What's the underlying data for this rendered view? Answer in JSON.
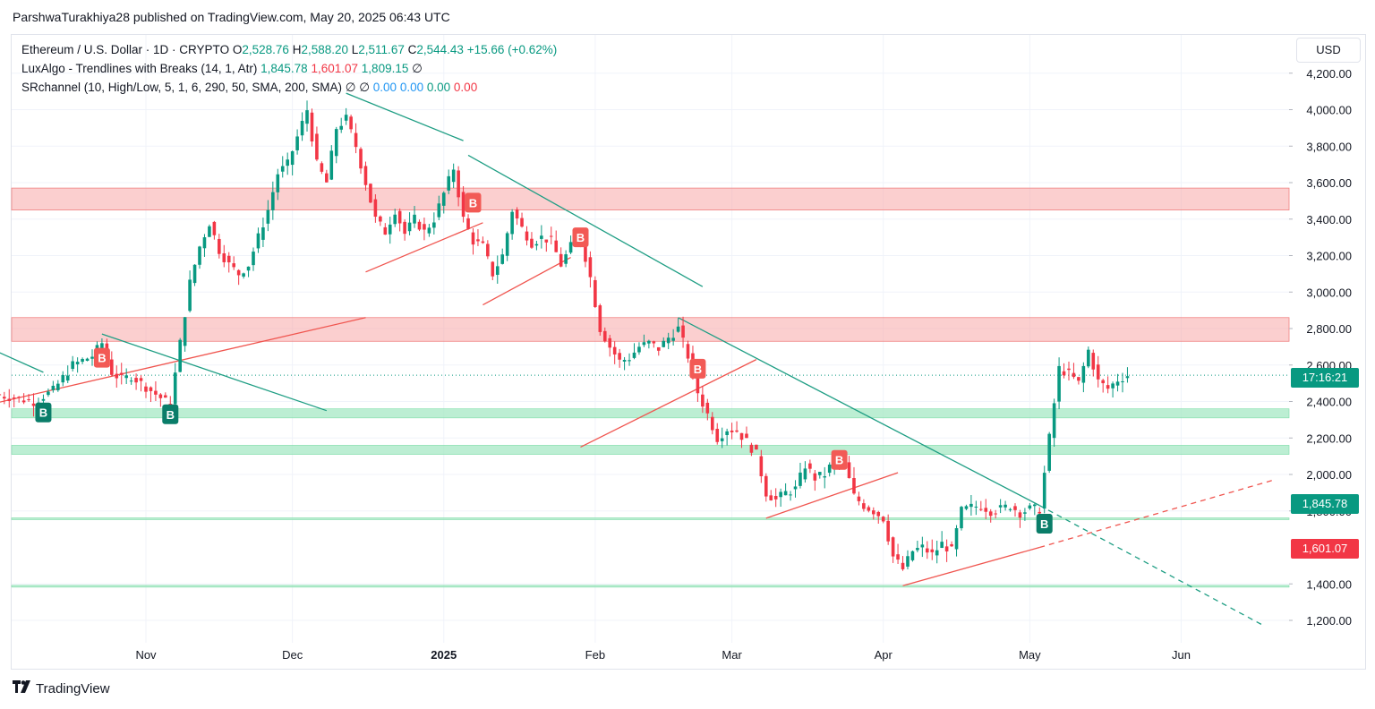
{
  "header": {
    "publisher_line": "ParshwaTurakhiya28 published on TradingView.com, May 20, 2025 06:43 UTC"
  },
  "legend": {
    "symbol": "Ethereum / U.S. Dollar · 1D · CRYPTO",
    "o_label": "O",
    "o_value": "2,528.76",
    "h_label": "H",
    "h_value": "2,588.20",
    "l_label": "L",
    "l_value": "2,511.67",
    "c_label": "C",
    "c_value": "2,544.43",
    "change": "+15.66 (+0.62%)",
    "ind1_name": "LuxAlgo - Trendlines with Breaks (14, 1, Atr)",
    "ind1_v1": "1,845.78",
    "ind1_v2": "1,601.07",
    "ind1_v3": "1,809.15",
    "ind1_v4": "∅",
    "ind2_name": "SRchannel (10, High/Low, 5, 1, 6, 290, 50, SMA, 200, SMA)",
    "ind2_v1": "∅",
    "ind2_v2": "∅",
    "ind2_v3": "0.00",
    "ind2_v4": "0.00",
    "ind2_v5": "0.00",
    "ind2_v6": "0.00"
  },
  "currency": "USD",
  "price_tags": {
    "countdown": "17:16:21",
    "upper_trendline": "1,845.78",
    "lower_trendline": "1,601.07"
  },
  "colors": {
    "up": "#089981",
    "down": "#f23645",
    "resistance_zone": "#f7a8a8",
    "support_zone": "#a5e8c4",
    "trend_down_line": "#1f9e84",
    "trend_up_line": "#f0554f"
  },
  "footer": {
    "logo_text": "TradingView"
  },
  "chart_data": {
    "type": "candlestick",
    "ylim": [
      1100,
      4300
    ],
    "y_ticks": [
      "4,200.00",
      "4,000.00",
      "3,800.00",
      "3,600.00",
      "3,400.00",
      "3,200.00",
      "3,000.00",
      "2,800.00",
      "2,600.00",
      "2,400.00",
      "2,200.00",
      "2,000.00",
      "1,800.00",
      "1,400.00",
      "1,200.00"
    ],
    "y_tick_values": [
      4200,
      4000,
      3800,
      3600,
      3400,
      3200,
      3000,
      2800,
      2600,
      2400,
      2200,
      2000,
      1800,
      1400,
      1200
    ],
    "x_ticks": [
      {
        "label": "Nov",
        "day": 39,
        "bold": false
      },
      {
        "label": "Dec",
        "day": 69,
        "bold": false
      },
      {
        "label": "2025",
        "day": 100,
        "bold": true
      },
      {
        "label": "Feb",
        "day": 131,
        "bold": false
      },
      {
        "label": "Mar",
        "day": 159,
        "bold": false
      },
      {
        "label": "Apr",
        "day": 190,
        "bold": false
      },
      {
        "label": "May",
        "day": 220,
        "bold": false
      },
      {
        "label": "Jun",
        "day": 251,
        "bold": false
      }
    ],
    "days_shown": [
      8,
      274
    ],
    "close_series": [
      [
        8,
        2440
      ],
      [
        12,
        2420
      ],
      [
        16,
        2400
      ],
      [
        20,
        2460
      ],
      [
        24,
        2600
      ],
      [
        28,
        2650
      ],
      [
        30,
        2720
      ],
      [
        32,
        2560
      ],
      [
        34,
        2520
      ],
      [
        36,
        2540
      ],
      [
        38,
        2500
      ],
      [
        42,
        2420
      ],
      [
        44,
        2380
      ],
      [
        46,
        2720
      ],
      [
        48,
        3050
      ],
      [
        50,
        3250
      ],
      [
        52,
        3380
      ],
      [
        54,
        3230
      ],
      [
        56,
        3150
      ],
      [
        58,
        3100
      ],
      [
        60,
        3150
      ],
      [
        62,
        3300
      ],
      [
        64,
        3450
      ],
      [
        66,
        3650
      ],
      [
        68,
        3700
      ],
      [
        70,
        3850
      ],
      [
        72,
        4000
      ],
      [
        74,
        3700
      ],
      [
        76,
        3600
      ],
      [
        78,
        3900
      ],
      [
        80,
        3950
      ],
      [
        82,
        3800
      ],
      [
        84,
        3600
      ],
      [
        86,
        3400
      ],
      [
        88,
        3330
      ],
      [
        90,
        3450
      ],
      [
        92,
        3320
      ],
      [
        94,
        3400
      ],
      [
        96,
        3330
      ],
      [
        98,
        3400
      ],
      [
        100,
        3540
      ],
      [
        102,
        3680
      ],
      [
        104,
        3400
      ],
      [
        106,
        3280
      ],
      [
        108,
        3250
      ],
      [
        110,
        3100
      ],
      [
        112,
        3200
      ],
      [
        114,
        3450
      ],
      [
        116,
        3350
      ],
      [
        118,
        3270
      ],
      [
        120,
        3300
      ],
      [
        122,
        3280
      ],
      [
        124,
        3150
      ],
      [
        126,
        3250
      ],
      [
        128,
        3300
      ],
      [
        130,
        3080
      ],
      [
        132,
        2800
      ],
      [
        134,
        2700
      ],
      [
        136,
        2620
      ],
      [
        138,
        2640
      ],
      [
        140,
        2700
      ],
      [
        142,
        2720
      ],
      [
        144,
        2690
      ],
      [
        146,
        2750
      ],
      [
        148,
        2800
      ],
      [
        150,
        2650
      ],
      [
        152,
        2450
      ],
      [
        154,
        2330
      ],
      [
        156,
        2200
      ],
      [
        158,
        2250
      ],
      [
        160,
        2240
      ],
      [
        162,
        2180
      ],
      [
        164,
        2110
      ],
      [
        166,
        1900
      ],
      [
        168,
        1860
      ],
      [
        170,
        1900
      ],
      [
        172,
        1920
      ],
      [
        174,
        2050
      ],
      [
        176,
        1980
      ],
      [
        178,
        2000
      ],
      [
        180,
        2080
      ],
      [
        182,
        2060
      ],
      [
        184,
        1880
      ],
      [
        186,
        1830
      ],
      [
        188,
        1800
      ],
      [
        190,
        1760
      ],
      [
        192,
        1550
      ],
      [
        194,
        1480
      ],
      [
        196,
        1580
      ],
      [
        198,
        1600
      ],
      [
        200,
        1560
      ],
      [
        202,
        1620
      ],
      [
        204,
        1580
      ],
      [
        206,
        1800
      ],
      [
        208,
        1820
      ],
      [
        210,
        1830
      ],
      [
        212,
        1800
      ],
      [
        214,
        1810
      ],
      [
        216,
        1830
      ],
      [
        218,
        1790
      ],
      [
        220,
        1810
      ],
      [
        222,
        1810
      ],
      [
        224,
        2200
      ],
      [
        226,
        2580
      ],
      [
        228,
        2550
      ],
      [
        230,
        2500
      ],
      [
        232,
        2680
      ],
      [
        234,
        2510
      ],
      [
        236,
        2470
      ],
      [
        238,
        2520
      ],
      [
        240,
        2544
      ]
    ],
    "resistance_zones": [
      {
        "low": 3450,
        "high": 3570
      },
      {
        "low": 2730,
        "high": 2860
      }
    ],
    "support_zones": [
      {
        "low": 2310,
        "high": 2360
      },
      {
        "low": 2110,
        "high": 2160
      },
      {
        "low": 1755,
        "high": 1762
      },
      {
        "low": 1385,
        "high": 1392
      }
    ],
    "current_price": 2544.43,
    "down_trendlines": [
      {
        "from": [
          8,
          2680
        ],
        "to": [
          18,
          2560
        ],
        "dashed": false
      },
      {
        "from": [
          30,
          2770
        ],
        "to": [
          76,
          2350
        ],
        "dashed": false
      },
      {
        "from": [
          80,
          4090
        ],
        "to": [
          104,
          3830
        ],
        "dashed": false
      },
      {
        "from": [
          105,
          3750
        ],
        "to": [
          153,
          3030
        ],
        "dashed": false
      },
      {
        "from": [
          148,
          2860
        ],
        "to": [
          222,
          1830
        ],
        "dashed": false
      },
      {
        "from": [
          222,
          1830
        ],
        "to": [
          268,
          1170
        ],
        "dashed": true
      }
    ],
    "up_trendlines": [
      {
        "from": [
          8,
          2390
        ],
        "to": [
          84,
          2860
        ],
        "dashed": false
      },
      {
        "from": [
          84,
          3110
        ],
        "to": [
          108,
          3380
        ],
        "dashed": false
      },
      {
        "from": [
          108,
          2930
        ],
        "to": [
          126,
          3190
        ],
        "dashed": false
      },
      {
        "from": [
          128,
          2150
        ],
        "to": [
          164,
          2630
        ],
        "dashed": false
      },
      {
        "from": [
          166,
          1760
        ],
        "to": [
          193,
          2010
        ],
        "dashed": false
      },
      {
        "from": [
          194,
          1390
        ],
        "to": [
          222,
          1600
        ],
        "dashed": false
      },
      {
        "from": [
          222,
          1600
        ],
        "to": [
          270,
          1970
        ],
        "dashed": true
      }
    ],
    "signals": [
      {
        "day": 18,
        "price": 2340,
        "label": "B",
        "kind": "buy"
      },
      {
        "day": 30,
        "price": 2640,
        "label": "B",
        "kind": "break"
      },
      {
        "day": 44,
        "price": 2330,
        "label": "B",
        "kind": "buy"
      },
      {
        "day": 106,
        "price": 3490,
        "label": "B",
        "kind": "break"
      },
      {
        "day": 128,
        "price": 3300,
        "label": "B",
        "kind": "break"
      },
      {
        "day": 152,
        "price": 2580,
        "label": "B",
        "kind": "break"
      },
      {
        "day": 181,
        "price": 2080,
        "label": "B",
        "kind": "break"
      },
      {
        "day": 223,
        "price": 1730,
        "label": "B",
        "kind": "buy"
      }
    ]
  }
}
